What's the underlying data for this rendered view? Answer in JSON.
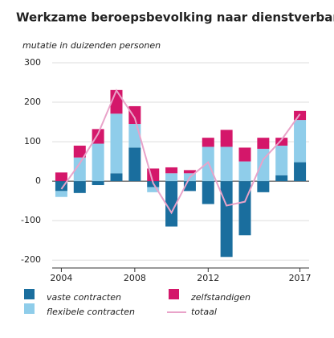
{
  "chart_data": {
    "type": "bar",
    "title": "Werkzame beroepsbevolking naar dienstverband",
    "y_label": "mutatie in duizenden personen",
    "categories": [
      "2004",
      null,
      null,
      null,
      "2008",
      null,
      null,
      null,
      "2012",
      null,
      null,
      null,
      null,
      "2017"
    ],
    "series": [
      {
        "name": "vaste contracten",
        "color": "#1a6e9e",
        "values": [
          -25,
          -30,
          -10,
          20,
          85,
          -15,
          -115,
          -25,
          -58,
          -192,
          -137,
          -28,
          15,
          48
        ]
      },
      {
        "name": "flexibele contracten",
        "color": "#8fcdea",
        "values": [
          -15,
          60,
          95,
          151,
          60,
          -13,
          20,
          20,
          87,
          87,
          50,
          82,
          75,
          107
        ]
      },
      {
        "name": "zelfstandigen",
        "color": "#d4176a",
        "values": [
          22,
          30,
          37,
          60,
          45,
          32,
          15,
          8,
          23,
          43,
          35,
          28,
          20,
          23
        ]
      },
      {
        "name": "totaal",
        "color": "#e9a3c9",
        "type": "line",
        "values": [
          -20,
          45,
          120,
          230,
          160,
          -5,
          -80,
          10,
          48,
          -62,
          -52,
          55,
          105,
          170
        ]
      }
    ],
    "ylim": [
      -220,
      300
    ],
    "yticks": [
      -200,
      -100,
      0,
      100,
      200,
      300
    ],
    "grid": true
  }
}
